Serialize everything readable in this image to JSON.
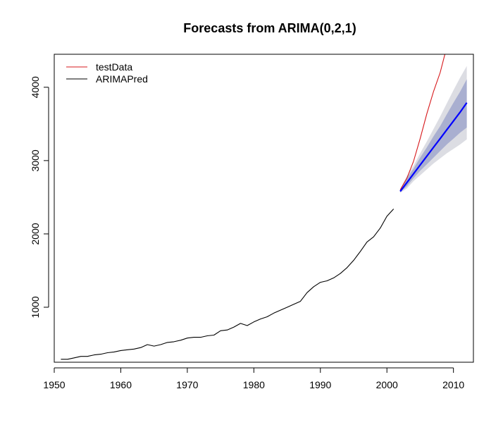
{
  "chart_data": {
    "type": "line",
    "title": "Forecasts from ARIMA(0,2,1)",
    "xlabel": "",
    "ylabel": "",
    "xlim": [
      1950,
      2013
    ],
    "ylim": [
      250,
      4450
    ],
    "x_ticks": [
      1950,
      1960,
      1970,
      1980,
      1990,
      2000,
      2010
    ],
    "y_ticks": [
      1000,
      2000,
      3000,
      4000
    ],
    "grid": false,
    "legend": {
      "position": "top-left",
      "entries": [
        {
          "label": "testData",
          "color": "#d7191c"
        },
        {
          "label": "ARIMAPred",
          "color": "#000000"
        }
      ]
    },
    "series": [
      {
        "kind": "history",
        "color": "#000000",
        "x": [
          1951,
          1952,
          1953,
          1954,
          1955,
          1956,
          1957,
          1958,
          1959,
          1960,
          1961,
          1962,
          1963,
          1964,
          1965,
          1966,
          1967,
          1968,
          1969,
          1970,
          1971,
          1972,
          1973,
          1974,
          1975,
          1976,
          1977,
          1978,
          1979,
          1980,
          1981,
          1982,
          1983,
          1984,
          1985,
          1986,
          1987,
          1988,
          1989,
          1990,
          1991,
          1992,
          1993,
          1994,
          1995,
          1996,
          1997,
          1998,
          1999,
          2000,
          2001
        ],
        "y": [
          290,
          290,
          310,
          330,
          330,
          350,
          360,
          380,
          390,
          410,
          420,
          430,
          450,
          490,
          470,
          490,
          520,
          530,
          550,
          580,
          590,
          590,
          610,
          620,
          680,
          690,
          730,
          780,
          750,
          800,
          840,
          870,
          920,
          960,
          1000,
          1040,
          1080,
          1200,
          1280,
          1340,
          1360,
          1400,
          1460,
          1540,
          1640,
          1760,
          1890,
          1960,
          2080,
          2240,
          2340
        ]
      },
      {
        "name": "testData",
        "color": "#d7191c",
        "x": [
          2002,
          2003,
          2004,
          2005,
          2006,
          2007,
          2008,
          2009
        ],
        "y": [
          2600,
          2760,
          2990,
          3300,
          3640,
          3940,
          4200,
          4550
        ]
      },
      {
        "name": "ARIMAPred",
        "kind": "forecast",
        "color": "#0000ff",
        "x": [
          2002,
          2003,
          2004,
          2005,
          2006,
          2007,
          2008,
          2009,
          2010,
          2011,
          2012
        ],
        "y": [
          2580,
          2700,
          2820,
          2940,
          3060,
          3180,
          3300,
          3420,
          3540,
          3660,
          3790
        ],
        "lo80": [
          2570,
          2650,
          2760,
          2860,
          2950,
          3040,
          3130,
          3220,
          3300,
          3380,
          3450
        ],
        "hi80": [
          2600,
          2760,
          2890,
          3040,
          3180,
          3330,
          3470,
          3630,
          3790,
          3940,
          4110
        ],
        "lo95": [
          2560,
          2620,
          2720,
          2800,
          2880,
          2960,
          3030,
          3100,
          3160,
          3220,
          3290
        ],
        "hi95": [
          2610,
          2790,
          2930,
          3100,
          3260,
          3430,
          3600,
          3780,
          3960,
          4130,
          4290
        ],
        "band80_color": "#a9afd0",
        "band95_color": "#dcdde3"
      }
    ]
  }
}
